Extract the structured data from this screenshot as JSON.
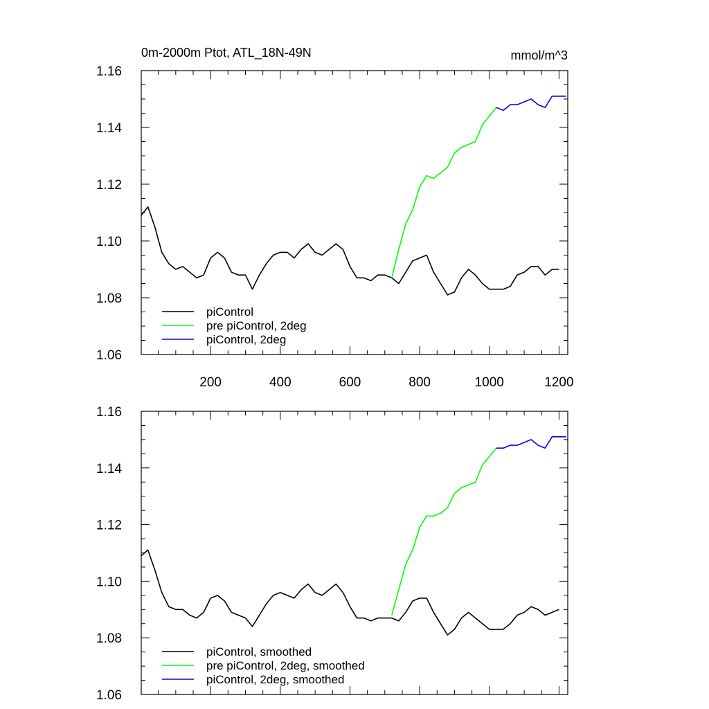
{
  "title_left": "0m-2000m Ptot, ATL_18N-49N",
  "title_right": "mmol/m^3",
  "colors": {
    "black": "#000000",
    "green": "#00ff00",
    "blue": "#0000ff"
  },
  "chart_data": [
    {
      "type": "line",
      "panel": "top",
      "xlim": [
        1,
        1225
      ],
      "ylim": [
        1.06,
        1.16
      ],
      "x_ticks": [
        200,
        400,
        600,
        800,
        1000,
        1200
      ],
      "x_tick_labels": [
        "200",
        "400",
        "600",
        "800",
        "1000",
        "1200"
      ],
      "y_ticks": [
        1.06,
        1.08,
        1.1,
        1.12,
        1.14,
        1.16
      ],
      "y_tick_labels": [
        "1.06",
        "1.08",
        "1.10",
        "1.12",
        "1.14",
        "1.16"
      ],
      "grid": false,
      "legend_position": "bottom-left",
      "series": [
        {
          "name": "piControl",
          "color": "#000000",
          "x": [
            1,
            20,
            40,
            60,
            80,
            100,
            120,
            140,
            160,
            180,
            200,
            220,
            240,
            260,
            280,
            300,
            320,
            340,
            360,
            380,
            400,
            420,
            440,
            460,
            480,
            500,
            520,
            540,
            560,
            580,
            600,
            620,
            640,
            660,
            680,
            700,
            720,
            740,
            760,
            780,
            800,
            820,
            840,
            860,
            880,
            900,
            920,
            940,
            960,
            980,
            1000,
            1020,
            1040,
            1060,
            1080,
            1100,
            1120,
            1140,
            1160,
            1180,
            1200
          ],
          "y": [
            1.109,
            1.112,
            1.105,
            1.096,
            1.092,
            1.09,
            1.091,
            1.089,
            1.087,
            1.088,
            1.094,
            1.096,
            1.094,
            1.089,
            1.088,
            1.088,
            1.083,
            1.088,
            1.092,
            1.095,
            1.096,
            1.096,
            1.094,
            1.097,
            1.099,
            1.096,
            1.095,
            1.097,
            1.099,
            1.097,
            1.091,
            1.087,
            1.087,
            1.086,
            1.088,
            1.088,
            1.087,
            1.085,
            1.089,
            1.093,
            1.094,
            1.095,
            1.089,
            1.085,
            1.081,
            1.082,
            1.087,
            1.09,
            1.088,
            1.085,
            1.083,
            1.083,
            1.083,
            1.084,
            1.088,
            1.089,
            1.091,
            1.091,
            1.088,
            1.09,
            1.09
          ]
        },
        {
          "name": "pre piControl, 2deg",
          "color": "#00ff00",
          "x": [
            720,
            740,
            760,
            780,
            800,
            820,
            840,
            860,
            880,
            900,
            920,
            940,
            960,
            980,
            1000,
            1020
          ],
          "y": [
            1.087,
            1.097,
            1.106,
            1.111,
            1.119,
            1.123,
            1.122,
            1.124,
            1.126,
            1.131,
            1.133,
            1.134,
            1.135,
            1.141,
            1.144,
            1.147
          ]
        },
        {
          "name": "piControl, 2deg",
          "color": "#0000ff",
          "x": [
            1020,
            1040,
            1060,
            1080,
            1100,
            1120,
            1140,
            1160,
            1180,
            1200,
            1220
          ],
          "y": [
            1.147,
            1.146,
            1.148,
            1.148,
            1.149,
            1.15,
            1.148,
            1.147,
            1.151,
            1.151,
            1.151
          ]
        }
      ]
    },
    {
      "type": "line",
      "panel": "bottom",
      "xlim": [
        1,
        1225
      ],
      "ylim": [
        1.06,
        1.16
      ],
      "x_ticks": [
        200,
        400,
        600,
        800,
        1000,
        1200
      ],
      "y_ticks": [
        1.06,
        1.08,
        1.1,
        1.12,
        1.14,
        1.16
      ],
      "y_tick_labels": [
        "1.06",
        "1.08",
        "1.10",
        "1.12",
        "1.14",
        "1.16"
      ],
      "grid": false,
      "legend_position": "bottom-left",
      "series": [
        {
          "name": "piControl, smoothed",
          "color": "#000000",
          "x": [
            1,
            20,
            40,
            60,
            80,
            100,
            120,
            140,
            160,
            180,
            200,
            220,
            240,
            260,
            280,
            300,
            320,
            340,
            360,
            380,
            400,
            420,
            440,
            460,
            480,
            500,
            520,
            540,
            560,
            580,
            600,
            620,
            640,
            660,
            680,
            700,
            720,
            740,
            760,
            780,
            800,
            820,
            840,
            860,
            880,
            900,
            920,
            940,
            960,
            980,
            1000,
            1020,
            1040,
            1060,
            1080,
            1100,
            1120,
            1140,
            1160,
            1180,
            1200
          ],
          "y": [
            1.109,
            1.111,
            1.104,
            1.096,
            1.091,
            1.09,
            1.09,
            1.088,
            1.087,
            1.089,
            1.094,
            1.095,
            1.093,
            1.089,
            1.088,
            1.087,
            1.084,
            1.088,
            1.092,
            1.095,
            1.096,
            1.095,
            1.094,
            1.097,
            1.099,
            1.096,
            1.095,
            1.097,
            1.099,
            1.096,
            1.091,
            1.087,
            1.087,
            1.086,
            1.087,
            1.087,
            1.087,
            1.086,
            1.089,
            1.093,
            1.094,
            1.094,
            1.089,
            1.085,
            1.081,
            1.083,
            1.087,
            1.089,
            1.087,
            1.085,
            1.083,
            1.083,
            1.083,
            1.085,
            1.088,
            1.089,
            1.091,
            1.09,
            1.088,
            1.089,
            1.09
          ]
        },
        {
          "name": "pre piControl, 2deg, smoothed",
          "color": "#00ff00",
          "x": [
            720,
            740,
            760,
            780,
            800,
            820,
            840,
            860,
            880,
            900,
            920,
            940,
            960,
            980,
            1000,
            1020
          ],
          "y": [
            1.088,
            1.097,
            1.106,
            1.111,
            1.119,
            1.123,
            1.123,
            1.124,
            1.126,
            1.131,
            1.133,
            1.134,
            1.135,
            1.141,
            1.144,
            1.147
          ]
        },
        {
          "name": "piControl, 2deg, smoothed",
          "color": "#0000ff",
          "x": [
            1020,
            1040,
            1060,
            1080,
            1100,
            1120,
            1140,
            1160,
            1180,
            1200,
            1220
          ],
          "y": [
            1.147,
            1.147,
            1.148,
            1.148,
            1.149,
            1.15,
            1.148,
            1.147,
            1.151,
            1.151,
            1.151
          ]
        }
      ]
    }
  ]
}
